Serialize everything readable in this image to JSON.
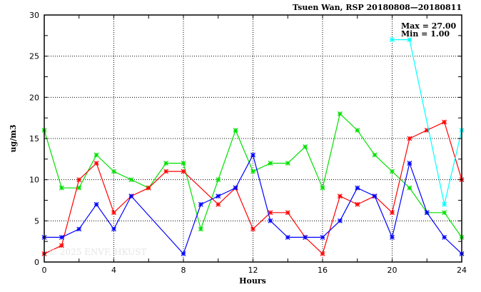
{
  "chart_data": {
    "type": "line",
    "title": "Tsuen Wan, RSP 20180808—20180811",
    "xlabel": "Hours",
    "ylabel": "ug/m3",
    "xlim": [
      0,
      24
    ],
    "ylim": [
      0,
      30
    ],
    "xticks": [
      0,
      4,
      8,
      12,
      16,
      20,
      24
    ],
    "yticks": [
      0,
      5,
      10,
      15,
      20,
      25,
      30
    ],
    "grid": true,
    "annotations": {
      "max": "Max = 27.00",
      "min": "Min =  1.00",
      "watermark": "© 2025  ENVF, HKUST"
    },
    "x": [
      0,
      1,
      2,
      3,
      4,
      5,
      6,
      7,
      8,
      9,
      10,
      11,
      12,
      13,
      14,
      15,
      16,
      17,
      18,
      19,
      20,
      21,
      22,
      23,
      24
    ],
    "series": [
      {
        "name": "green",
        "color": "#00e000",
        "values": [
          16,
          9,
          9,
          13,
          11,
          10,
          9,
          12,
          12,
          4,
          10,
          16,
          11,
          12,
          12,
          14,
          9,
          18,
          16,
          13,
          11,
          9,
          6,
          6,
          3
        ]
      },
      {
        "name": "red",
        "color": "#ff0000",
        "values": [
          1,
          2,
          10,
          12,
          6,
          8,
          9,
          11,
          11,
          null,
          7,
          9,
          4,
          6,
          6,
          3,
          1,
          8,
          7,
          8,
          6,
          15,
          16,
          17,
          10
        ]
      },
      {
        "name": "blue",
        "color": "#0000ff",
        "values": [
          3,
          3,
          4,
          7,
          4,
          8,
          null,
          null,
          1,
          7,
          8,
          9,
          13,
          5,
          3,
          3,
          3,
          5,
          9,
          8,
          3,
          12,
          6,
          3,
          1
        ]
      },
      {
        "name": "cyan",
        "color": "#00ffff",
        "values": [
          null,
          null,
          null,
          null,
          null,
          null,
          null,
          null,
          null,
          null,
          null,
          null,
          null,
          null,
          null,
          null,
          null,
          null,
          null,
          null,
          27,
          27,
          null,
          7,
          16
        ]
      }
    ]
  }
}
